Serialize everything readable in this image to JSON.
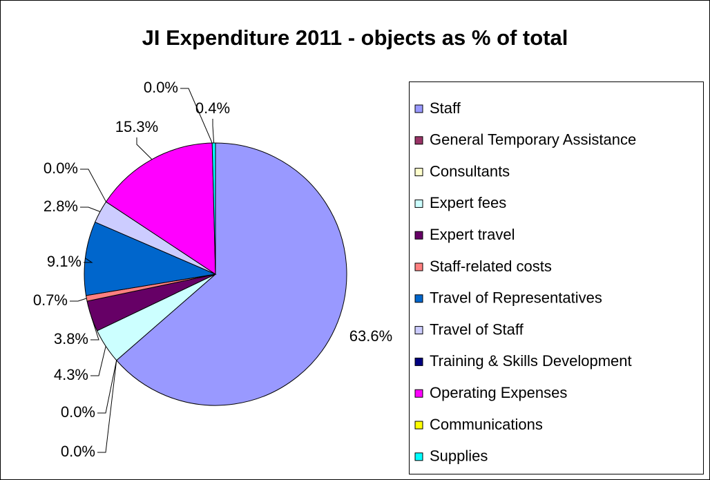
{
  "chart_data": {
    "type": "pie",
    "title": "JI Expenditure 2011 - objects as % of total",
    "categories": [
      "Staff",
      "General Temporary Assistance",
      "Consultants",
      "Expert fees",
      "Expert travel",
      "Staff-related costs",
      "Travel of Representatives",
      "Travel of Staff",
      "Training & Skills Development",
      "Operating Expenses",
      "Communications",
      "Supplies"
    ],
    "values": [
      63.6,
      0.0,
      0.0,
      4.3,
      3.8,
      0.7,
      9.1,
      2.8,
      0.0,
      15.3,
      0.0,
      0.4
    ],
    "value_labels": [
      "63.6%",
      "0.0%",
      "0.0%",
      "4.3%",
      "3.8%",
      "0.7%",
      "9.1%",
      "2.8%",
      "0.0%",
      "15.3%",
      "0.0%",
      "0.4%"
    ],
    "colors": [
      "#9999ff",
      "#993366",
      "#ffffcc",
      "#ccffff",
      "#660066",
      "#ff8080",
      "#0066cc",
      "#ccccff",
      "#000080",
      "#ff00ff",
      "#ffff00",
      "#00ffff"
    ],
    "legend": "right"
  }
}
